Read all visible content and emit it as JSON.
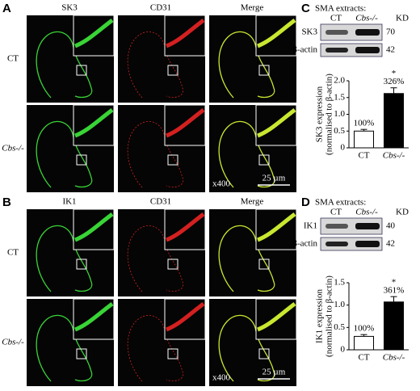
{
  "panels": [
    {
      "letter": "A",
      "columns": [
        "SK3",
        "CD31",
        "Merge"
      ],
      "rows": [
        "CT",
        "Cbs-/-"
      ],
      "magnification": "x400",
      "scale_bar": "25 µm"
    },
    {
      "letter": "B",
      "columns": [
        "IK1",
        "CD31",
        "Merge"
      ],
      "rows": [
        "CT",
        "Cbs-/-"
      ],
      "magnification": "x400",
      "scale_bar": "25 µm"
    }
  ],
  "chart_data": [
    {
      "type": "bar",
      "letter": "C",
      "blot": {
        "title": "SMA extracts:",
        "lanes": [
          "CT",
          "Cbs-/-"
        ],
        "unit": "KD",
        "rows": [
          {
            "label": "SK3",
            "size": 70
          },
          {
            "label": "β-actin",
            "size": 42
          }
        ]
      },
      "categories": [
        "CT",
        "Cbs-/-"
      ],
      "values": [
        0.5,
        1.62
      ],
      "errors": [
        0.05,
        0.17
      ],
      "colors": [
        "#ffffff",
        "#000000"
      ],
      "annotations": [
        "100%",
        "326%"
      ],
      "significance": "*",
      "ylabel": [
        "SK3 expression",
        "(normalised to β-actin)"
      ],
      "ylim": [
        0,
        2
      ],
      "yticks": [
        0,
        0.5,
        {
          "value": 1,
          "label": "1.0"
        },
        1.5,
        {
          "value": 2,
          "label": "2.0"
        }
      ]
    },
    {
      "type": "bar",
      "letter": "D",
      "blot": {
        "title": "SMA extracts:",
        "lanes": [
          "CT",
          "Cbs-/-"
        ],
        "unit": "KD",
        "rows": [
          {
            "label": "IK1",
            "size": 40
          },
          {
            "label": "β-actin",
            "size": 42
          }
        ]
      },
      "categories": [
        "CT",
        "Cbs-/-"
      ],
      "values": [
        0.3,
        1.07
      ],
      "errors": [
        0.04,
        0.12
      ],
      "colors": [
        "#ffffff",
        "#000000"
      ],
      "annotations": [
        "100%",
        "361%"
      ],
      "significance": "*",
      "ylabel": [
        "IK1 expression",
        "(normalised to β-actin)"
      ],
      "ylim": [
        0,
        1.5
      ],
      "yticks": [
        0,
        0.5,
        {
          "value": 1,
          "label": "1.0"
        },
        1.5
      ]
    }
  ]
}
